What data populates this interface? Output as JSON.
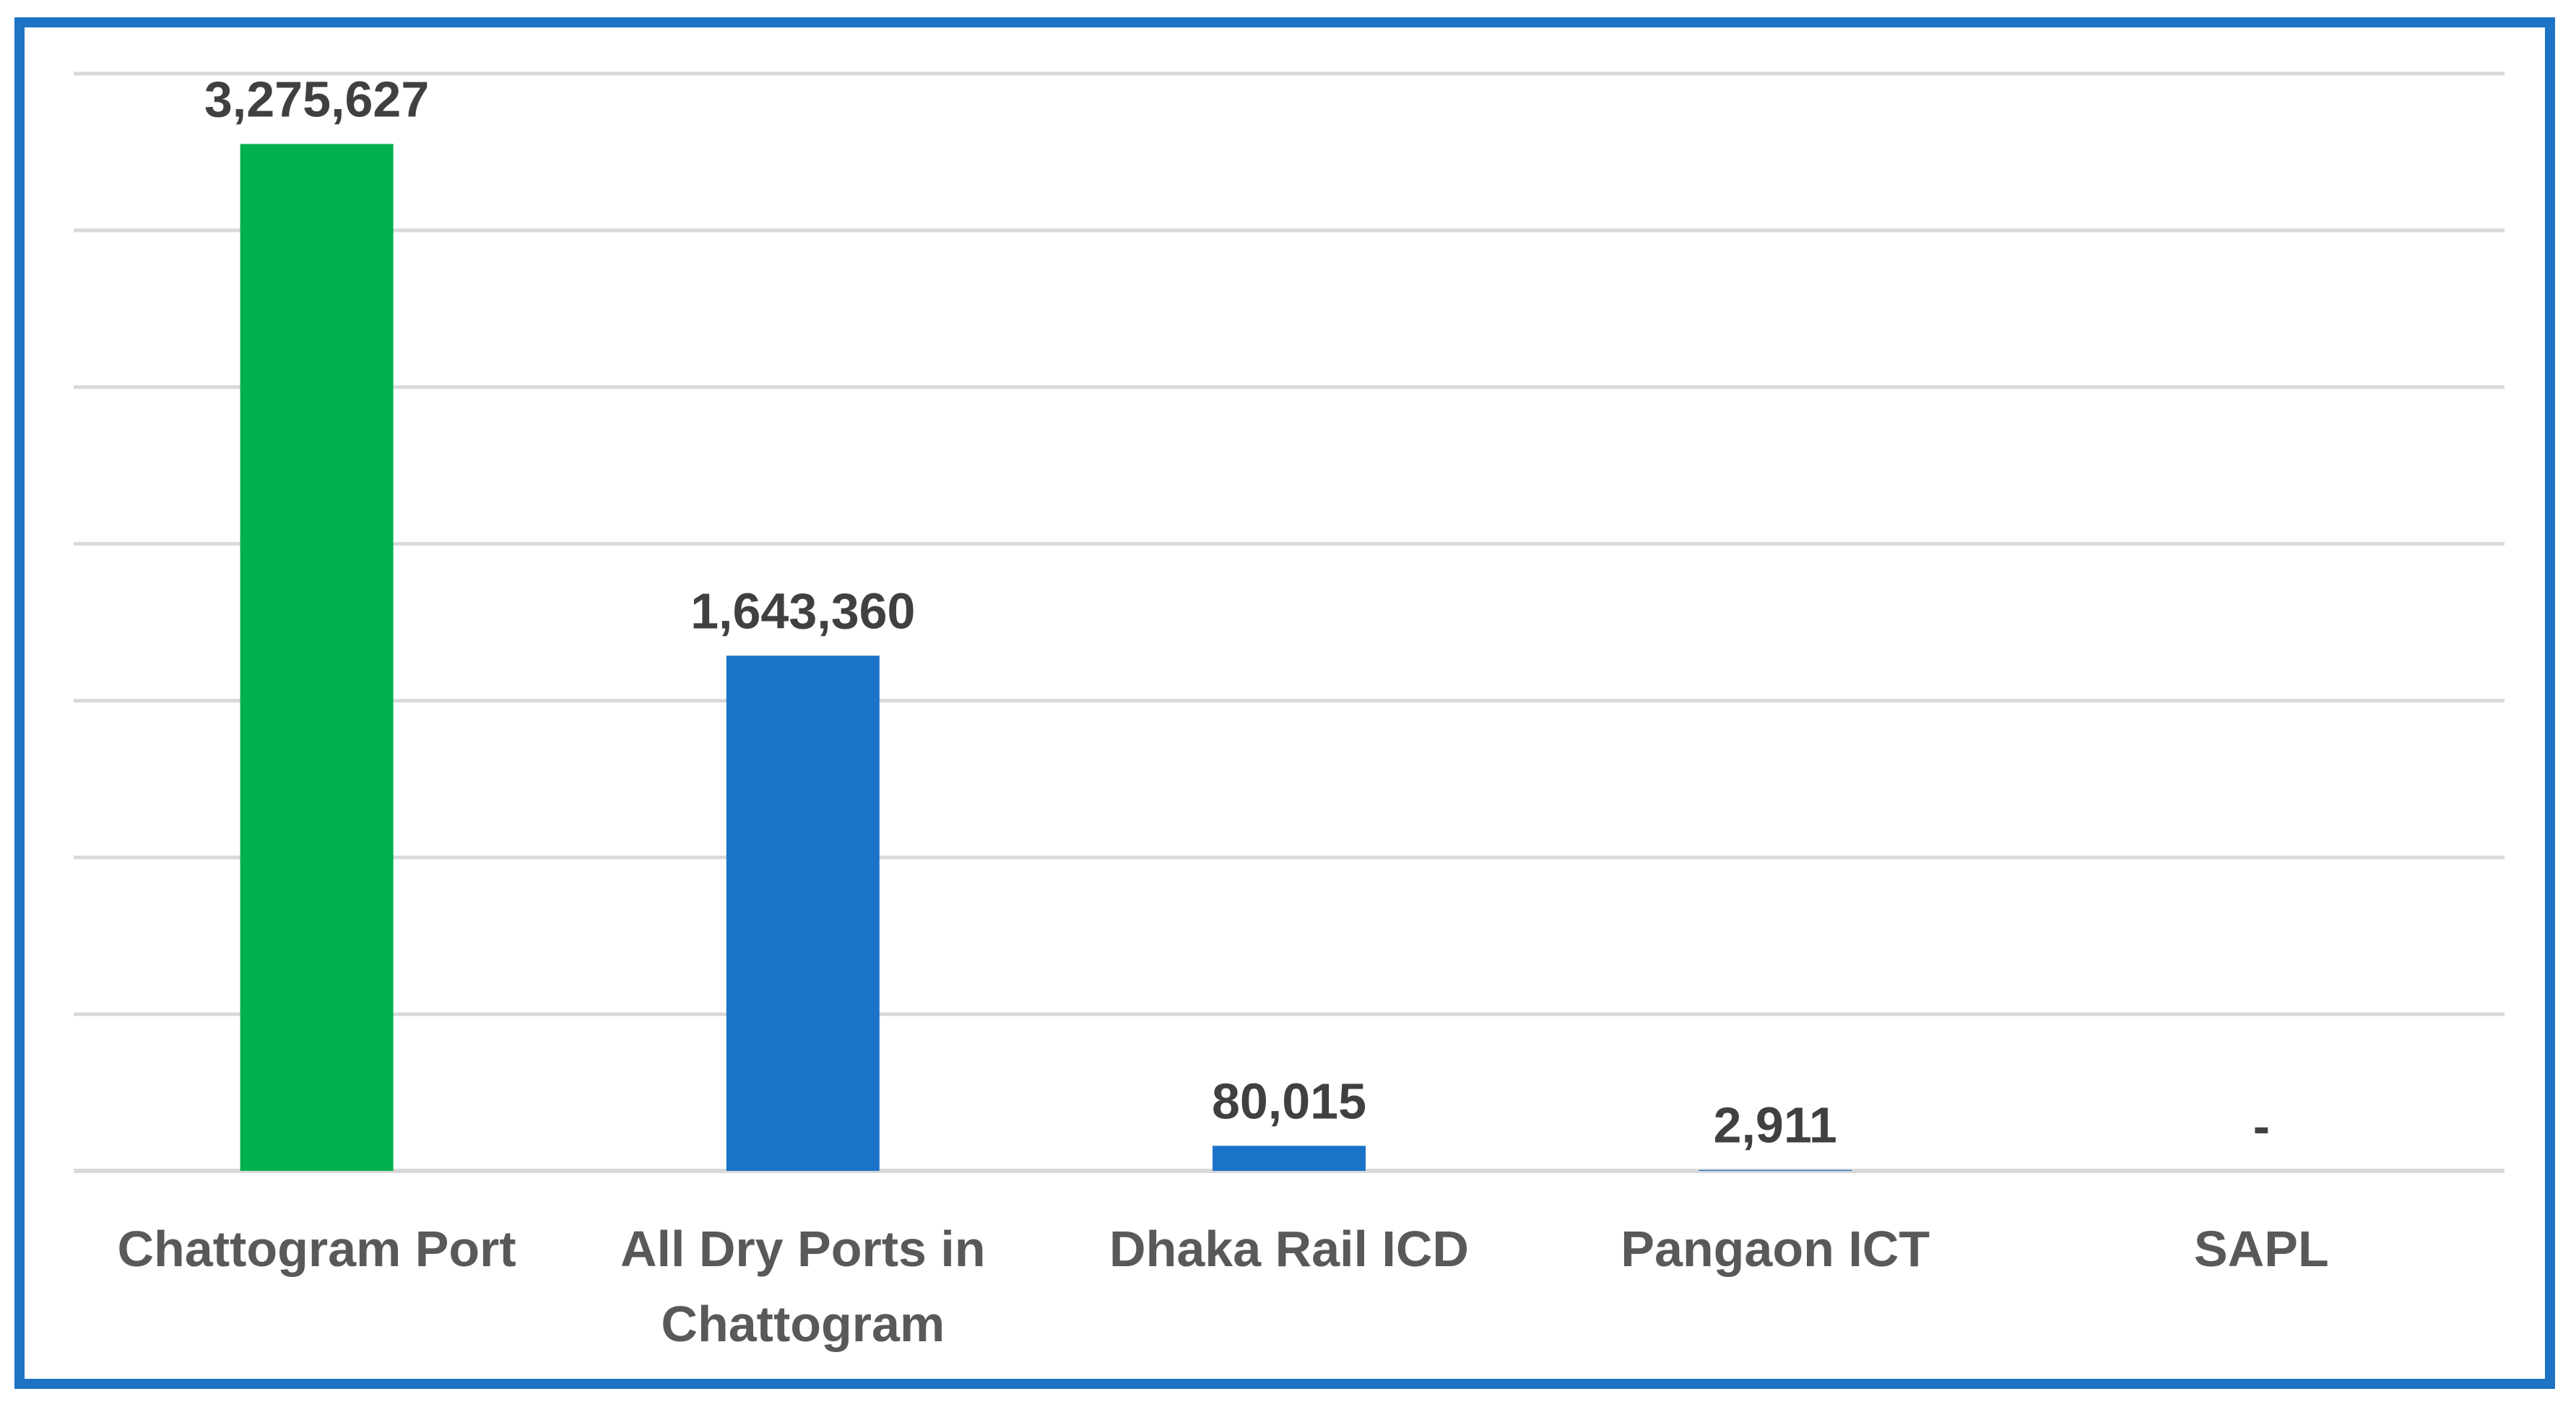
{
  "chart_data": {
    "type": "bar",
    "categories": [
      [
        "Chattogram Port"
      ],
      [
        "All Dry Ports in",
        "Chattogram"
      ],
      [
        "Dhaka Rail ICD"
      ],
      [
        "Pangaon ICT"
      ],
      [
        "SAPL"
      ]
    ],
    "values": [
      3275627,
      1643360,
      80015,
      2911,
      0
    ],
    "data_labels": [
      "3,275,627",
      "1,643,360",
      "80,015",
      "2,911",
      "-"
    ],
    "bar_colors": [
      "#00b04f",
      "#1a73c8",
      "#1a73c8",
      "#1a73c8",
      "#1a73c8"
    ],
    "ylim": [
      0,
      3500000
    ],
    "y_tick_step": 500000,
    "grid": true,
    "show_y_axis_labels": false,
    "title": "",
    "xlabel": "",
    "ylabel": ""
  },
  "colors": {
    "border": "#1d73c4",
    "grid": "#d9d9d9",
    "label_text": "#404040",
    "category_text": "#595959"
  }
}
